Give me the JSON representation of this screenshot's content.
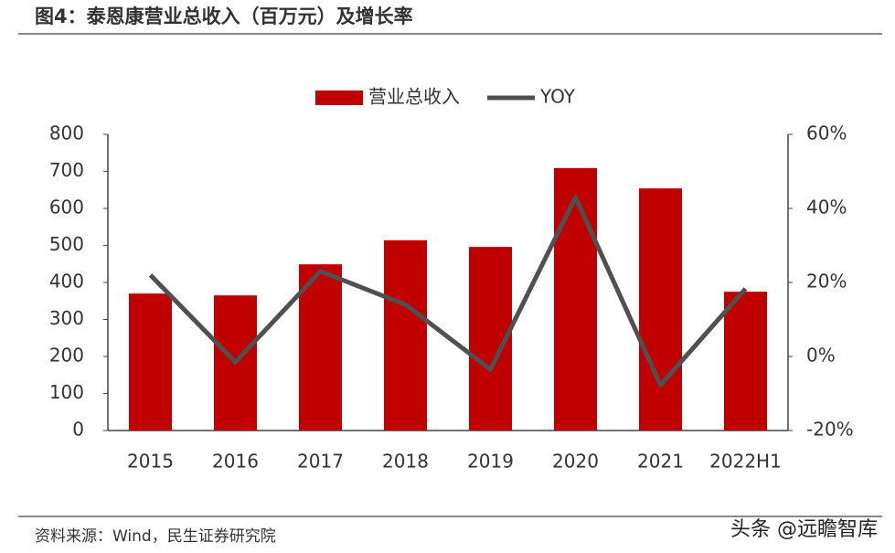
{
  "title": "图4：泰恩康营业总收入（百万元）及增长率",
  "source": "资料来源：Wind，民生证券研究院",
  "watermark": "头条 @远瞻智库",
  "chart_data": {
    "type": "bar-line",
    "categories": [
      "2015",
      "2016",
      "2017",
      "2018",
      "2019",
      "2020",
      "2021",
      "2022H1"
    ],
    "series": [
      {
        "name": "营业总收入",
        "color": "#c00000",
        "type": "bar",
        "values": [
          370,
          365,
          449,
          514,
          496,
          709,
          654,
          375
        ]
      },
      {
        "name": "YOY",
        "color": "#505050",
        "type": "line",
        "axis": "y2",
        "values": [
          22,
          -1.5,
          23,
          14,
          -3.5,
          43,
          -7.7,
          18.3
        ]
      }
    ],
    "ylim": [
      0,
      800
    ],
    "yticks": [
      0,
      100,
      200,
      300,
      400,
      500,
      600,
      700,
      800
    ],
    "y2lim": [
      -20,
      60
    ],
    "y2ticks": [
      {
        "value": -20,
        "label": "-20%"
      },
      {
        "value": 0,
        "label": "0%"
      },
      {
        "value": 20,
        "label": "20%"
      },
      {
        "value": 40,
        "label": "40%"
      },
      {
        "value": 60,
        "label": "60%"
      }
    ],
    "legend": "top"
  }
}
